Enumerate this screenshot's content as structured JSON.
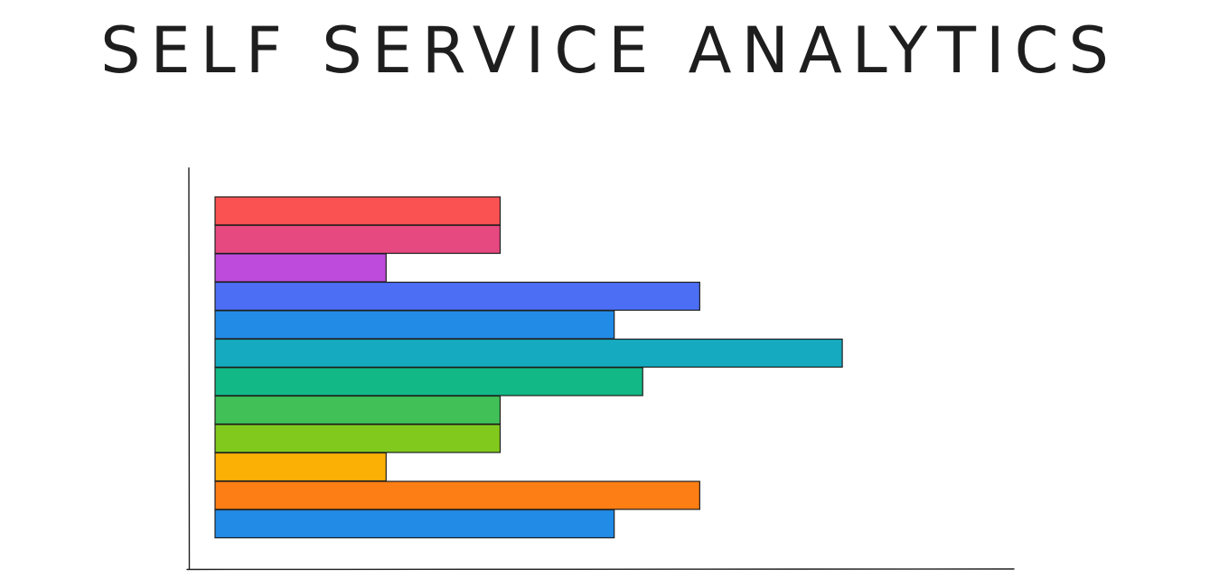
{
  "title": "SELF SERVICE ANALYTICS",
  "chart_data": {
    "type": "bar",
    "orientation": "horizontal",
    "title": "SELF SERVICE ANALYTICS",
    "xlabel": "",
    "ylabel": "",
    "xlim": [
      0,
      28
    ],
    "grid": false,
    "legend": "none",
    "stroke_color": "#1e1e1e",
    "bars": [
      {
        "value": 10,
        "color": "#fa5252"
      },
      {
        "value": 10,
        "color": "#e64980"
      },
      {
        "value": 6,
        "color": "#be4bdb"
      },
      {
        "value": 17,
        "color": "#4c6ef5"
      },
      {
        "value": 14,
        "color": "#228be6"
      },
      {
        "value": 22,
        "color": "#15aabf"
      },
      {
        "value": 15,
        "color": "#12b886"
      },
      {
        "value": 10,
        "color": "#40c057"
      },
      {
        "value": 10,
        "color": "#82c91e"
      },
      {
        "value": 6,
        "color": "#fab005"
      },
      {
        "value": 17,
        "color": "#fd7e14"
      },
      {
        "value": 14,
        "color": "#228be6"
      }
    ]
  }
}
